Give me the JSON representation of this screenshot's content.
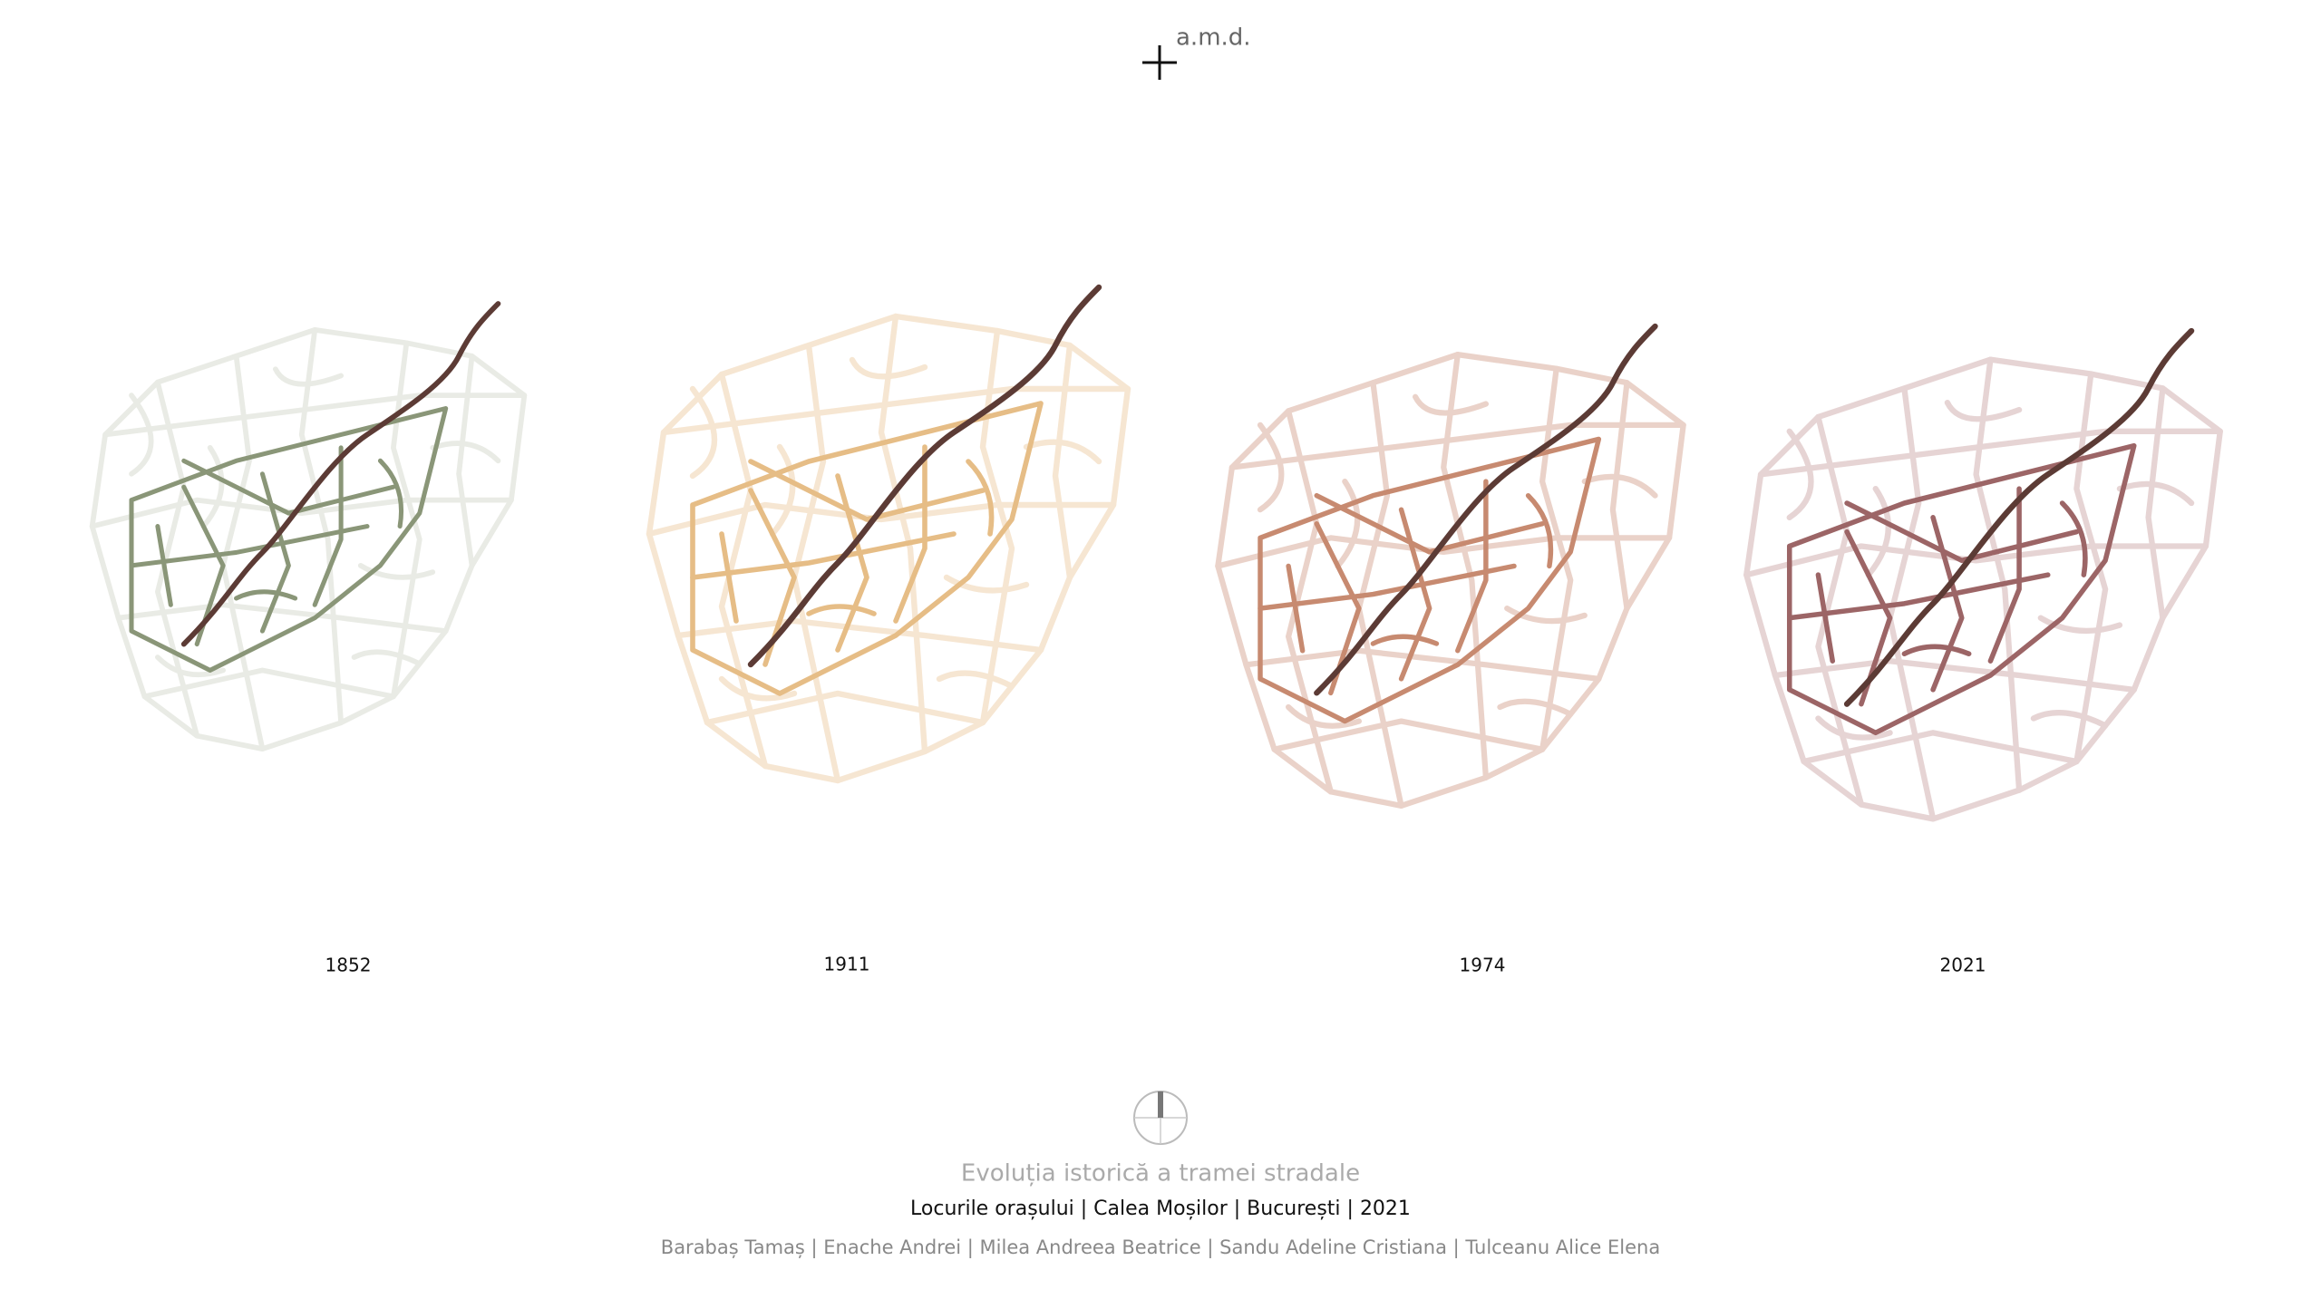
{
  "logo": "a.m.d.",
  "maps": [
    {
      "year": "1852"
    },
    {
      "year": "1911"
    },
    {
      "year": "1974"
    },
    {
      "year": "2021"
    }
  ],
  "title": "Evoluția istorică a tramei stradale",
  "subtitle": "Locurile orașului | Calea Moșilor | București | 2021",
  "authors": "Barabaș Tamaș | Enache Andrei | Milea Andreea Beatrice | Sandu Adeline Cristiana | Tulceanu Alice Elena"
}
